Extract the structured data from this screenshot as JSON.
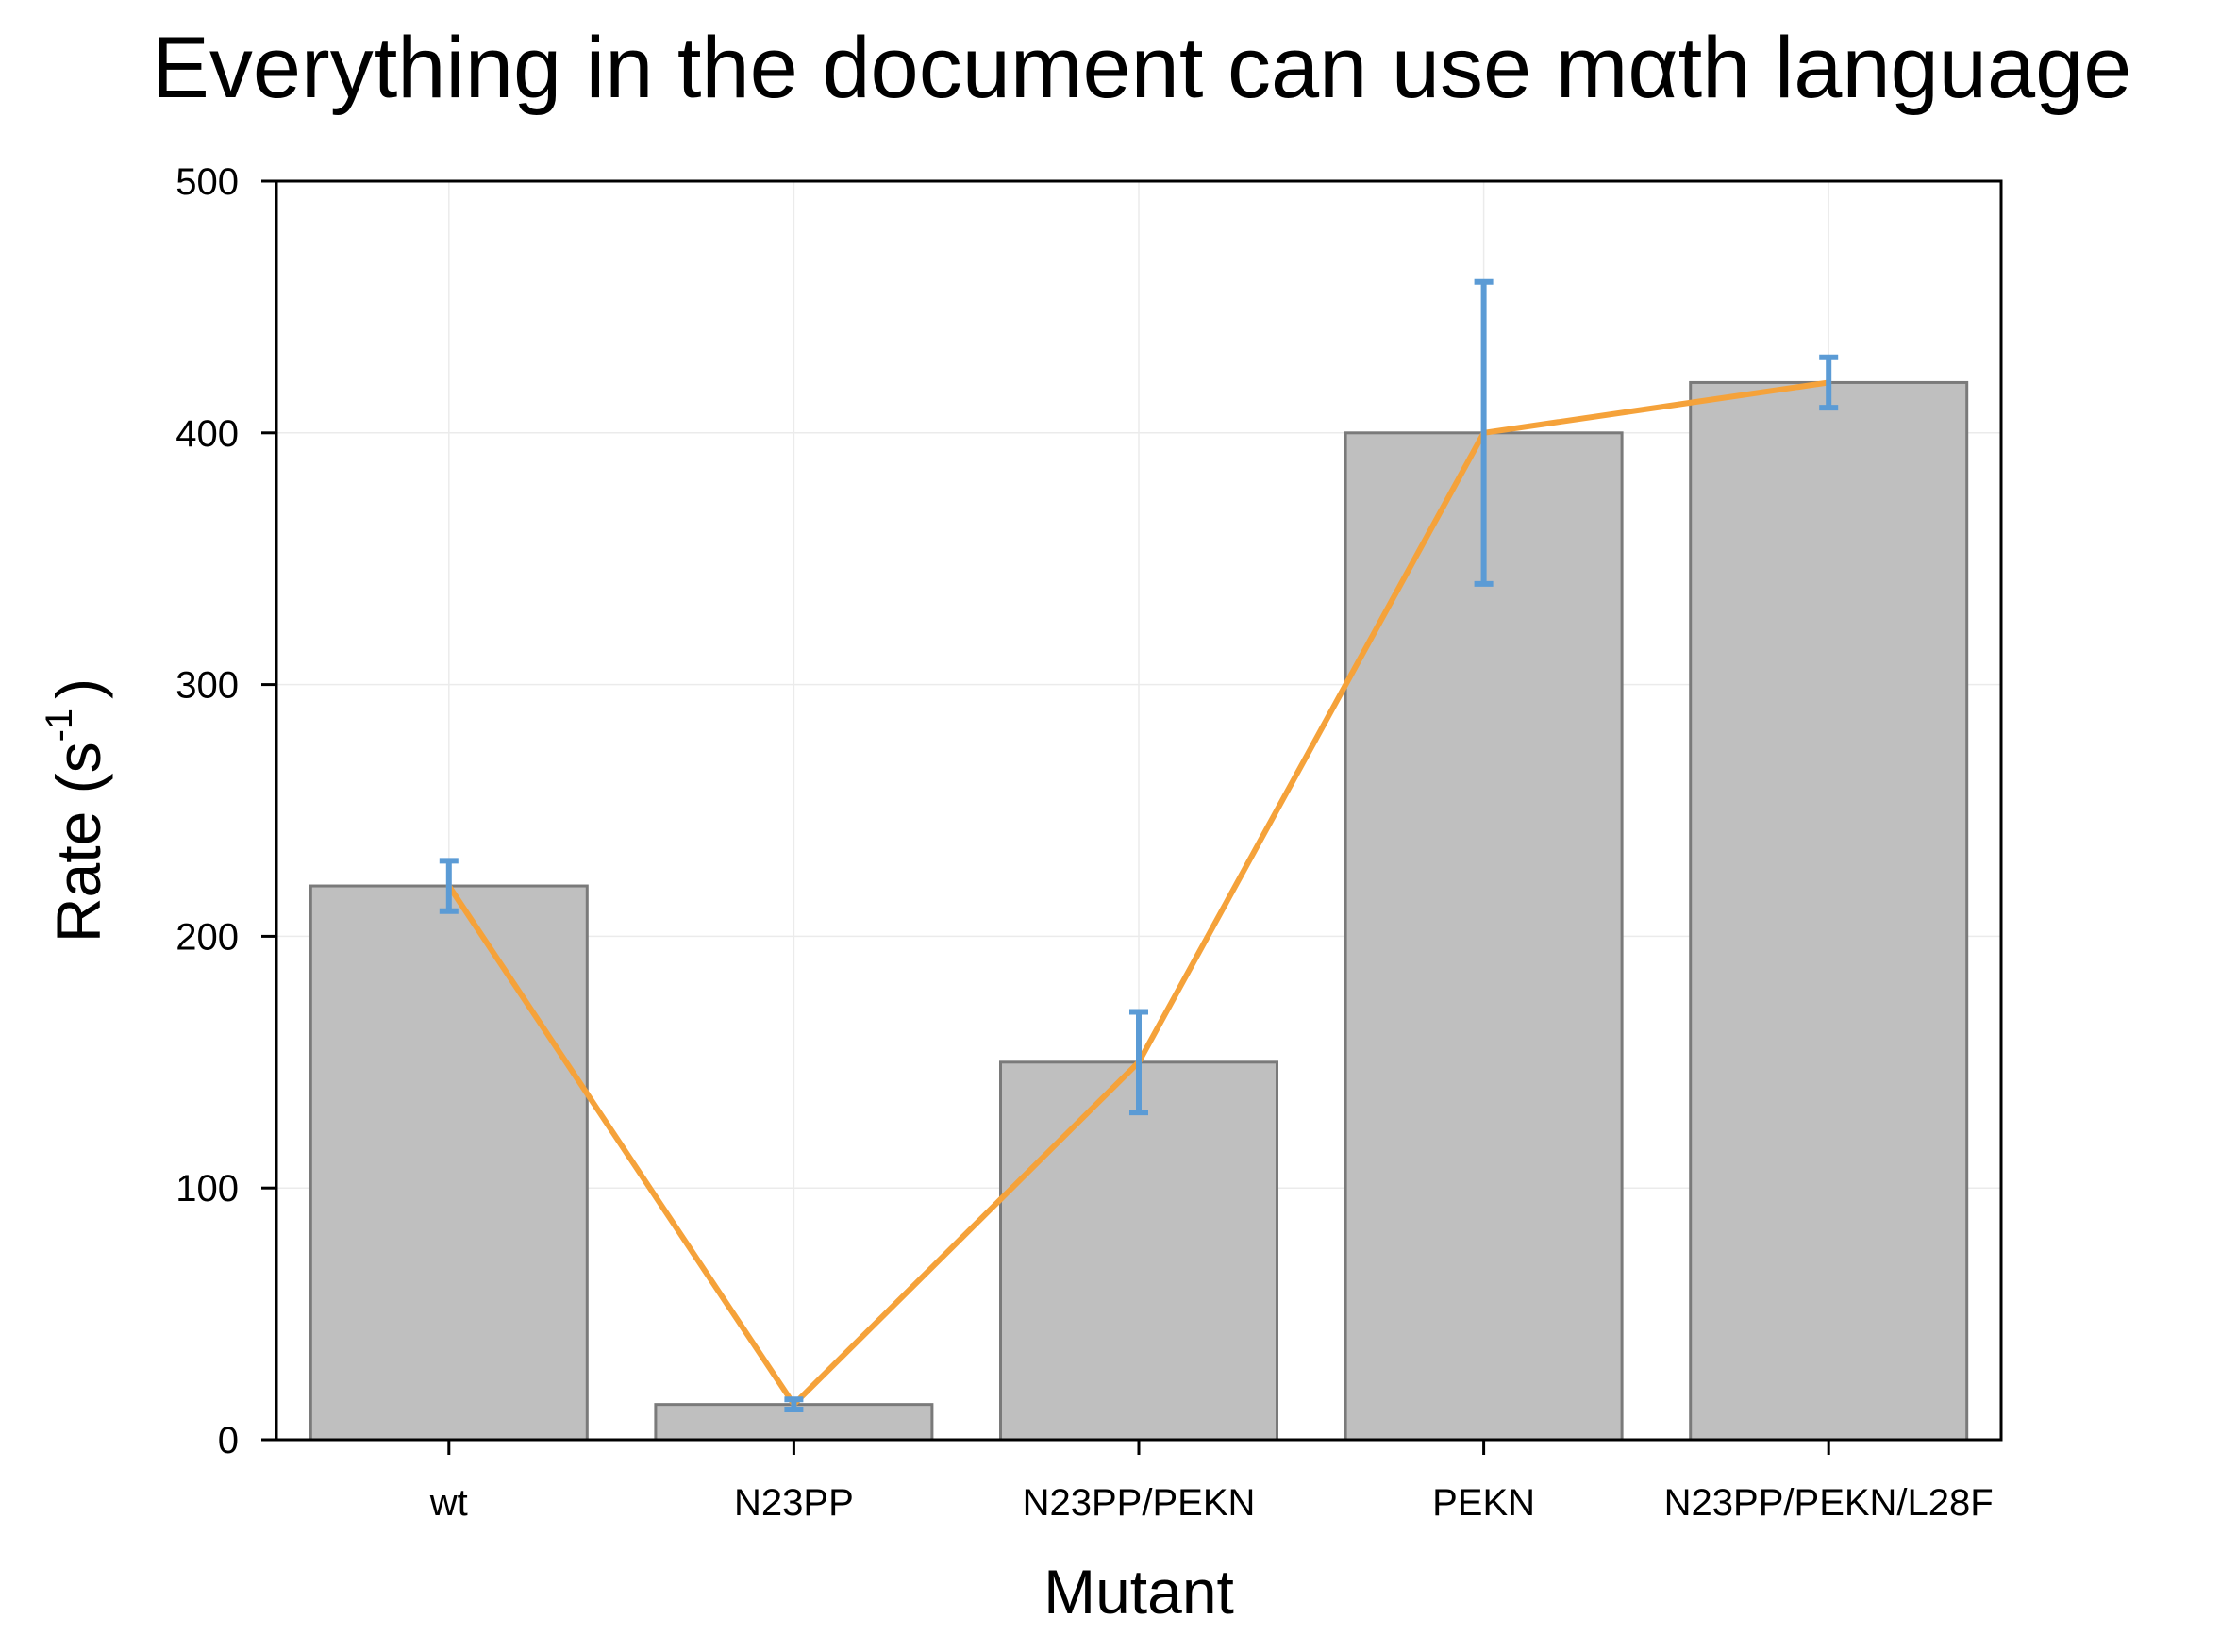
{
  "chart_data": {
    "type": "bar",
    "title": "Everything in the document can use mαth language",
    "xlabel": "Mutant",
    "ylabel": {
      "prefix": "Rate (s",
      "superscript": "-1",
      "suffix": ")"
    },
    "categories": [
      "wt",
      "N23PP",
      "N23PP/PEKN",
      "PEKN",
      "N23PP/PEKN/L28F"
    ],
    "values": [
      220,
      14,
      150,
      400,
      420
    ],
    "error_low": [
      210,
      12,
      130,
      340,
      410
    ],
    "error_high": [
      230,
      16,
      170,
      460,
      430
    ],
    "line_values": [
      220,
      14,
      150,
      400,
      420
    ],
    "ylim": [
      0,
      500
    ],
    "yticks": [
      0,
      100,
      200,
      300,
      400,
      500
    ],
    "grid": true,
    "legend": "none",
    "colors": {
      "bar_fill": "#bfbfbf",
      "bar_stroke": "#7a7a7a",
      "line": "#f5a23a",
      "error_bar": "#5b9bd5",
      "grid": "#ebebeb",
      "axis": "#000000"
    }
  }
}
